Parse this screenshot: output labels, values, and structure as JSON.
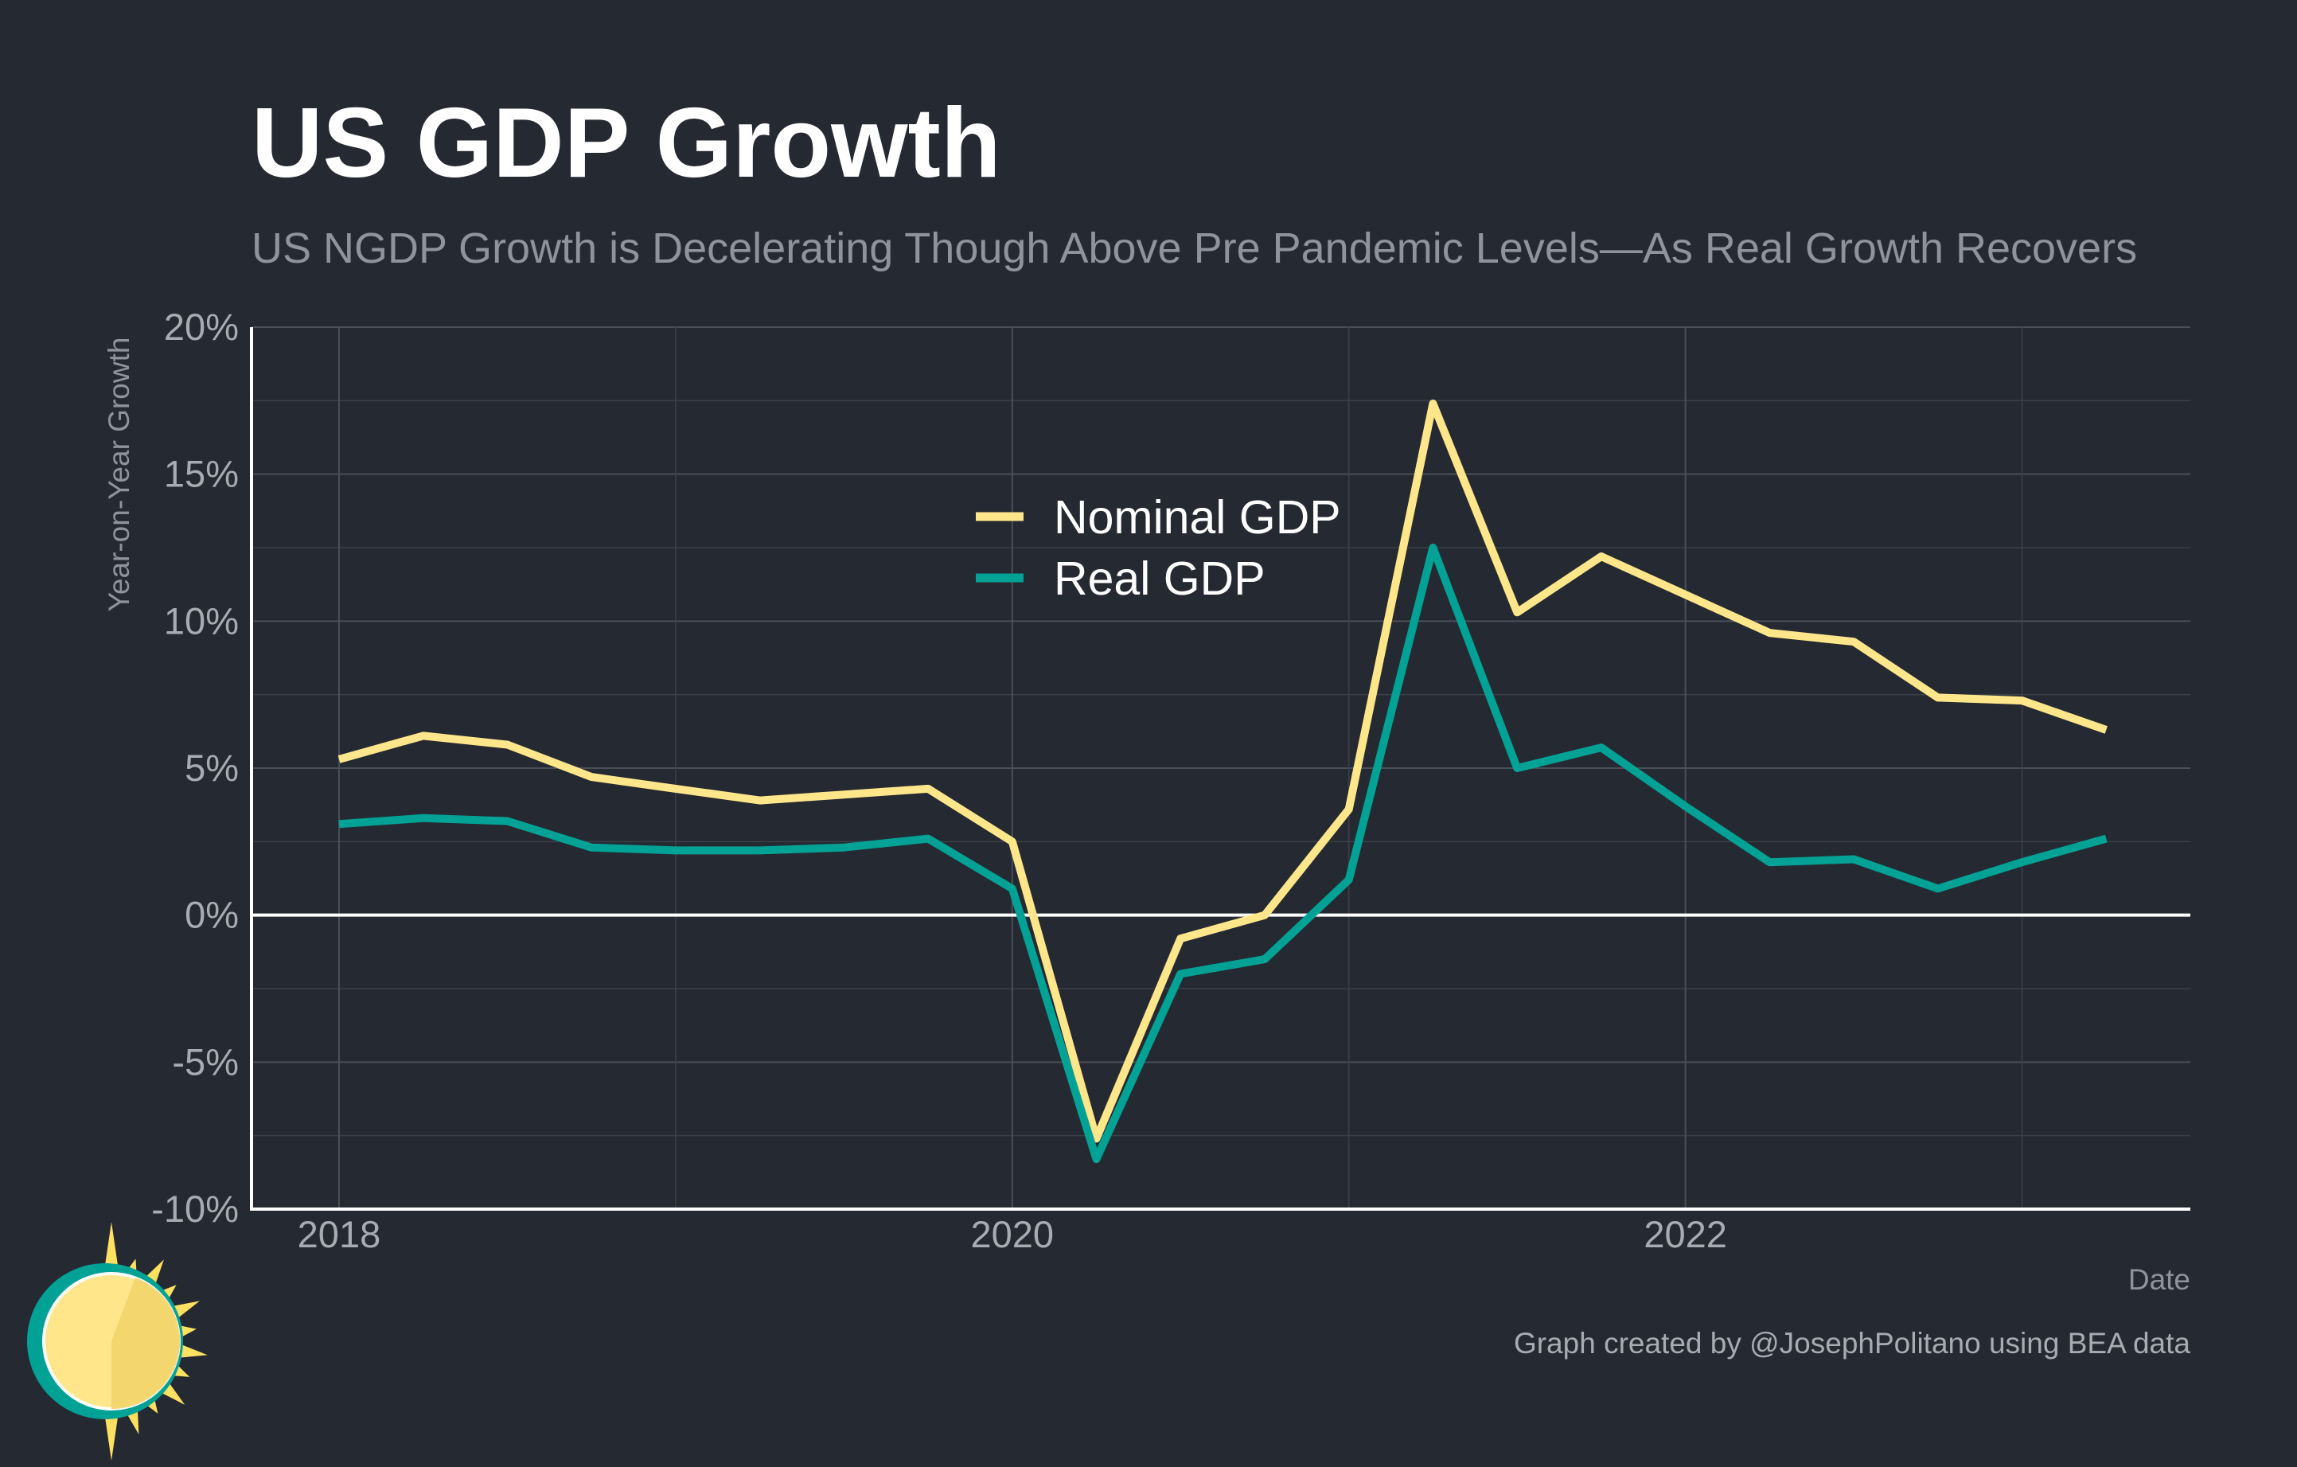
{
  "chart_data": {
    "type": "line",
    "title": "US GDP Growth",
    "subtitle": "US NGDP Growth is Decelerating Though Above Pre Pandemic Levels—As Real Growth Recovers",
    "xlabel": "Date",
    "ylabel": "Year-on-Year Growth",
    "caption": "Graph created by @JosephPolitano using BEA data",
    "xlim": [
      2017.74,
      2023.5
    ],
    "ylim": [
      -10,
      20
    ],
    "x_ticks": [
      2018,
      2020,
      2022
    ],
    "x_tick_labels": [
      "2018",
      "2020",
      "2022"
    ],
    "y_ticks": [
      -10,
      -5,
      0,
      5,
      10,
      15,
      20
    ],
    "y_tick_labels": [
      "-10%",
      "-5%",
      "0%",
      "5%",
      "10%",
      "15%",
      "20%"
    ],
    "grid": true,
    "legend_position": "top-center",
    "x": [
      2018.0,
      2018.25,
      2018.5,
      2018.75,
      2019.0,
      2019.25,
      2019.5,
      2019.75,
      2020.0,
      2020.25,
      2020.5,
      2020.75,
      2021.0,
      2021.25,
      2021.5,
      2021.75,
      2022.0,
      2022.25,
      2022.5,
      2022.75,
      2023.0,
      2023.25
    ],
    "series": [
      {
        "name": "Nominal GDP",
        "color": "#ffe68a",
        "values": [
          5.3,
          6.1,
          5.8,
          4.7,
          4.3,
          3.9,
          4.1,
          4.3,
          2.5,
          -7.6,
          -0.8,
          0.0,
          3.6,
          17.4,
          10.3,
          12.2,
          10.9,
          9.6,
          9.3,
          7.4,
          7.3,
          6.3
        ]
      },
      {
        "name": "Real GDP",
        "color": "#00a296",
        "values": [
          3.1,
          3.3,
          3.2,
          2.3,
          2.2,
          2.2,
          2.3,
          2.6,
          0.9,
          -8.3,
          -2.0,
          -1.5,
          1.2,
          12.5,
          5.0,
          5.7,
          3.7,
          1.8,
          1.9,
          0.9,
          1.8,
          2.6
        ]
      }
    ]
  },
  "logo": {
    "name": "sun-logo",
    "sun_color": "#ffe68a",
    "ring_color": "#00a296"
  }
}
